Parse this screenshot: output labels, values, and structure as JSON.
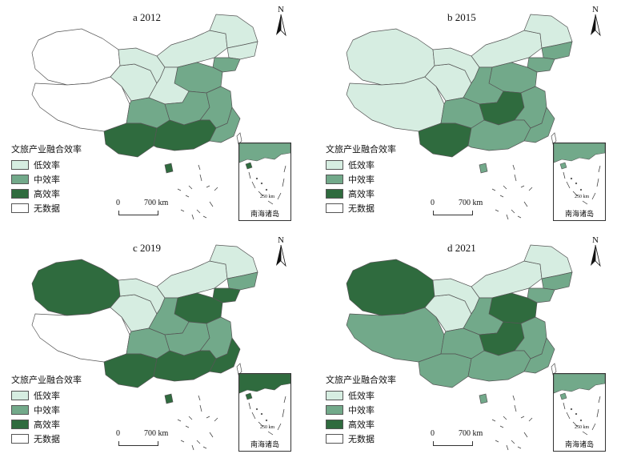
{
  "colors": {
    "low": "#d6ede1",
    "mid": "#72a98a",
    "high": "#2f6b3e",
    "nodata": "#ffffff",
    "border": "#555555"
  },
  "legend": {
    "title": "文旅产业融合效率",
    "items": [
      {
        "key": "low",
        "label": "低效率"
      },
      {
        "key": "mid",
        "label": "中效率"
      },
      {
        "key": "high",
        "label": "高效率"
      },
      {
        "key": "nodata",
        "label": "无数据"
      }
    ]
  },
  "scalebar": {
    "zero": "0",
    "distance": "700 km"
  },
  "north": "N",
  "inset": {
    "label": "南海诸岛",
    "scale": "250 km"
  },
  "panels": [
    {
      "title": "a 2012",
      "regions": {
        "xinjiang": "nodata",
        "tibet": "nodata",
        "qinghai": "low",
        "gansu": "low",
        "inner_mongolia": "low",
        "heilongjiang": "low",
        "jilin": "low",
        "liaoning": "mid",
        "north_china": "mid",
        "central_west": "low",
        "sichuan_east": "mid",
        "central": "mid",
        "east": "mid",
        "southwest": "high",
        "south": "high",
        "southeast": "mid"
      }
    },
    {
      "title": "b 2015",
      "regions": {
        "xinjiang": "low",
        "tibet": "low",
        "qinghai": "low",
        "gansu": "low",
        "inner_mongolia": "low",
        "heilongjiang": "low",
        "jilin": "mid",
        "liaoning": "mid",
        "north_china": "mid",
        "central_west": "mid",
        "sichuan_east": "mid",
        "central": "high",
        "east": "mid",
        "southwest": "high",
        "south": "mid",
        "southeast": "mid"
      }
    },
    {
      "title": "c 2019",
      "regions": {
        "xinjiang": "high",
        "tibet": "nodata",
        "qinghai": "low",
        "gansu": "low",
        "inner_mongolia": "low",
        "heilongjiang": "low",
        "jilin": "mid",
        "liaoning": "high",
        "north_china": "high",
        "central_west": "mid",
        "sichuan_east": "mid",
        "central": "mid",
        "east": "mid",
        "southwest": "high",
        "south": "high",
        "southeast": "high"
      }
    },
    {
      "title": "d 2021",
      "regions": {
        "xinjiang": "high",
        "tibet": "mid",
        "qinghai": "low",
        "gansu": "low",
        "inner_mongolia": "low",
        "heilongjiang": "low",
        "jilin": "mid",
        "liaoning": "mid",
        "north_china": "high",
        "central_west": "mid",
        "sichuan_east": "mid",
        "central": "high",
        "east": "mid",
        "southwest": "mid",
        "south": "mid",
        "southeast": "mid"
      }
    }
  ]
}
